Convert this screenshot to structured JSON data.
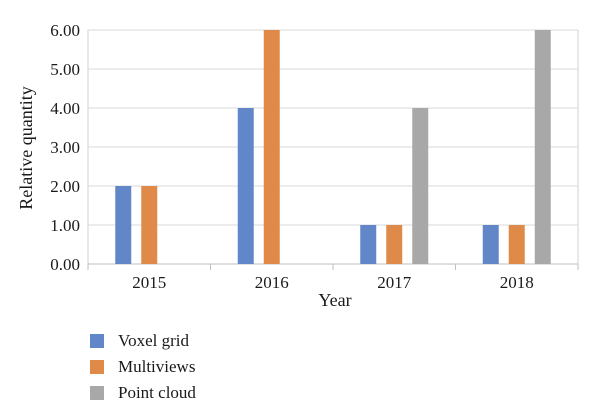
{
  "chart_data": {
    "type": "bar",
    "categories": [
      "2015",
      "2016",
      "2017",
      "2018"
    ],
    "series": [
      {
        "name": "Voxel grid",
        "values": [
          2,
          4,
          1,
          1
        ],
        "color": "#6287c8"
      },
      {
        "name": "Multiviews",
        "values": [
          2,
          6,
          1,
          1
        ],
        "color": "#e08a4a"
      },
      {
        "name": "Point cloud",
        "values": [
          null,
          null,
          4,
          6
        ],
        "color": "#a8a8a8"
      }
    ],
    "title": "",
    "xlabel": "Year",
    "ylabel": "Relative quantity",
    "ylim": [
      0,
      6
    ],
    "yticks": [
      "0.00",
      "1.00",
      "2.00",
      "3.00",
      "4.00",
      "5.00",
      "6.00"
    ],
    "grid": true,
    "legend_position": "bottom-left"
  }
}
